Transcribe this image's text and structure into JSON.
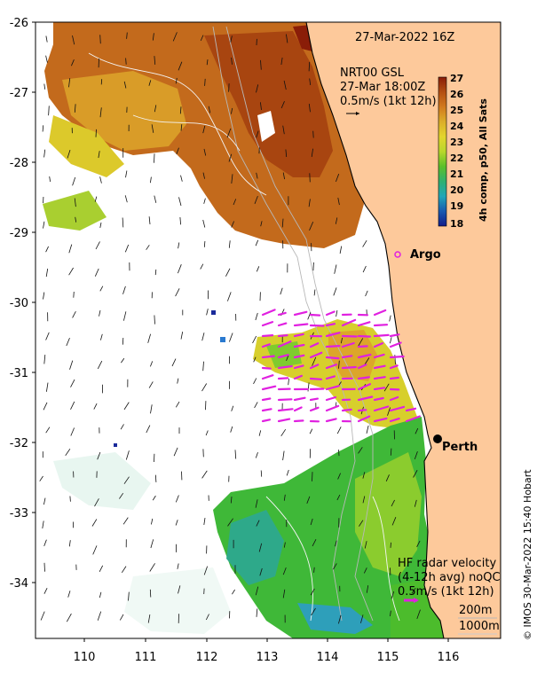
{
  "map": {
    "date_label": "27-Mar-2022 16Z",
    "wind_title_line1": "NRT00 GSL",
    "wind_title_line2": "27-Mar 18:00Z",
    "wind_title_line3": "0.5m/s (1kt 12h)",
    "colorbar_label": "4h comp, p50, All Sats",
    "colorbar_ticks": [
      "27",
      "26",
      "25",
      "24",
      "23",
      "22",
      "21",
      "20",
      "19",
      "18"
    ],
    "colorbar_colors": [
      "#8a1d08",
      "#b44f12",
      "#d27a1e",
      "#dcae2a",
      "#e3d52c",
      "#b8d72c",
      "#5bbf2a",
      "#2fb070",
      "#22a6b8",
      "#1a5ab0",
      "#121c8a"
    ],
    "argo_label": "Argo",
    "perth_label": "Perth",
    "radar_title_line1": "HF radar velocity",
    "radar_title_line2": "(4-12h avg) noQC",
    "radar_title_line3": "0.5m/s (1kt 12h)",
    "depth_200": "200m",
    "depth_1000": "1000m",
    "credit": "© IMOS 30-Mar-2022 15:40 Hobart",
    "y_ticks": [
      "-26",
      "-27",
      "-28",
      "-29",
      "-30",
      "-31",
      "-32",
      "-33",
      "-34"
    ],
    "x_ticks": [
      "110",
      "111",
      "112",
      "113",
      "114",
      "115",
      "116"
    ],
    "colors": {
      "land": "#fdc99b",
      "ocean": "#ffffff",
      "coast": "#000000",
      "radar": "#e020e0"
    }
  }
}
